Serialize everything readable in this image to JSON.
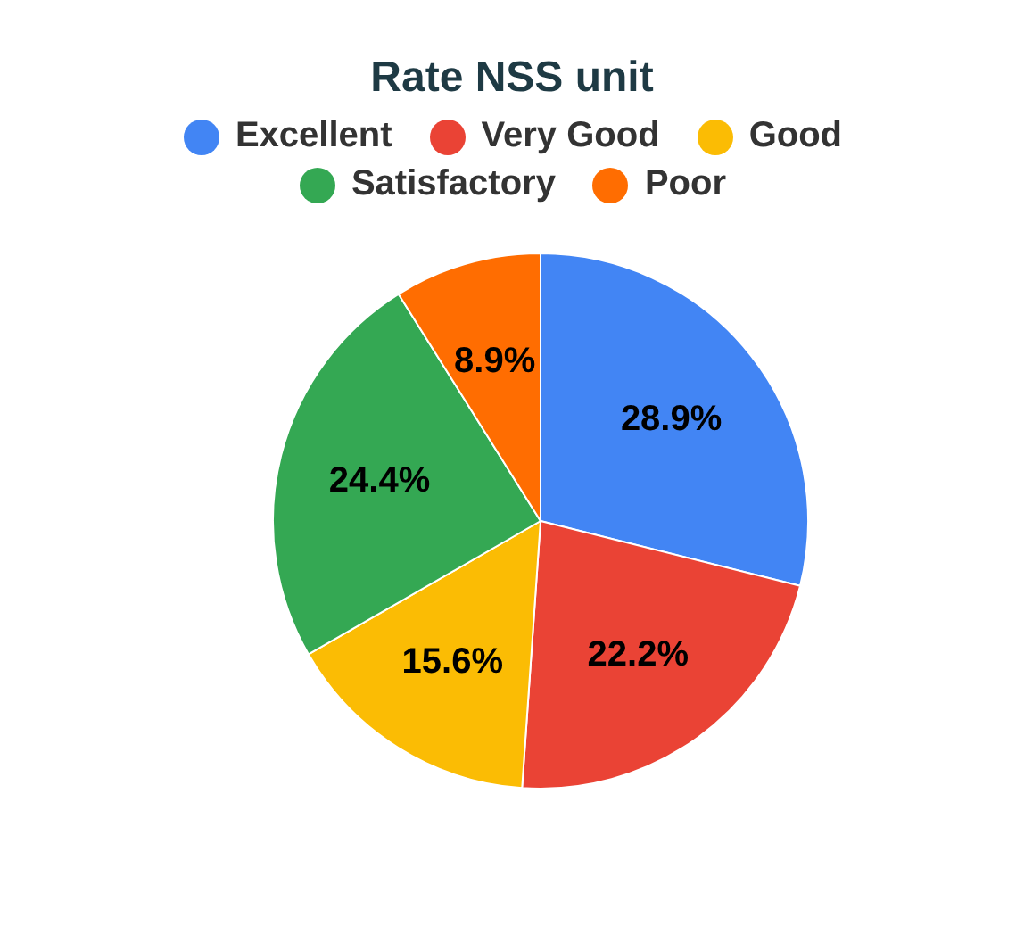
{
  "chart_data": {
    "type": "pie",
    "title": "Rate NSS unit",
    "categories": [
      "Excellent",
      "Very Good",
      "Good",
      "Satisfactory",
      "Poor"
    ],
    "values": [
      28.9,
      22.2,
      15.6,
      24.4,
      8.9
    ],
    "colors": [
      "#4285f4",
      "#ea4335",
      "#fbbc04",
      "#34a853",
      "#ff6d01"
    ],
    "value_labels": [
      "28.9%",
      "22.2%",
      "15.6%",
      "24.4%",
      "8.9%"
    ],
    "legend": "top"
  }
}
